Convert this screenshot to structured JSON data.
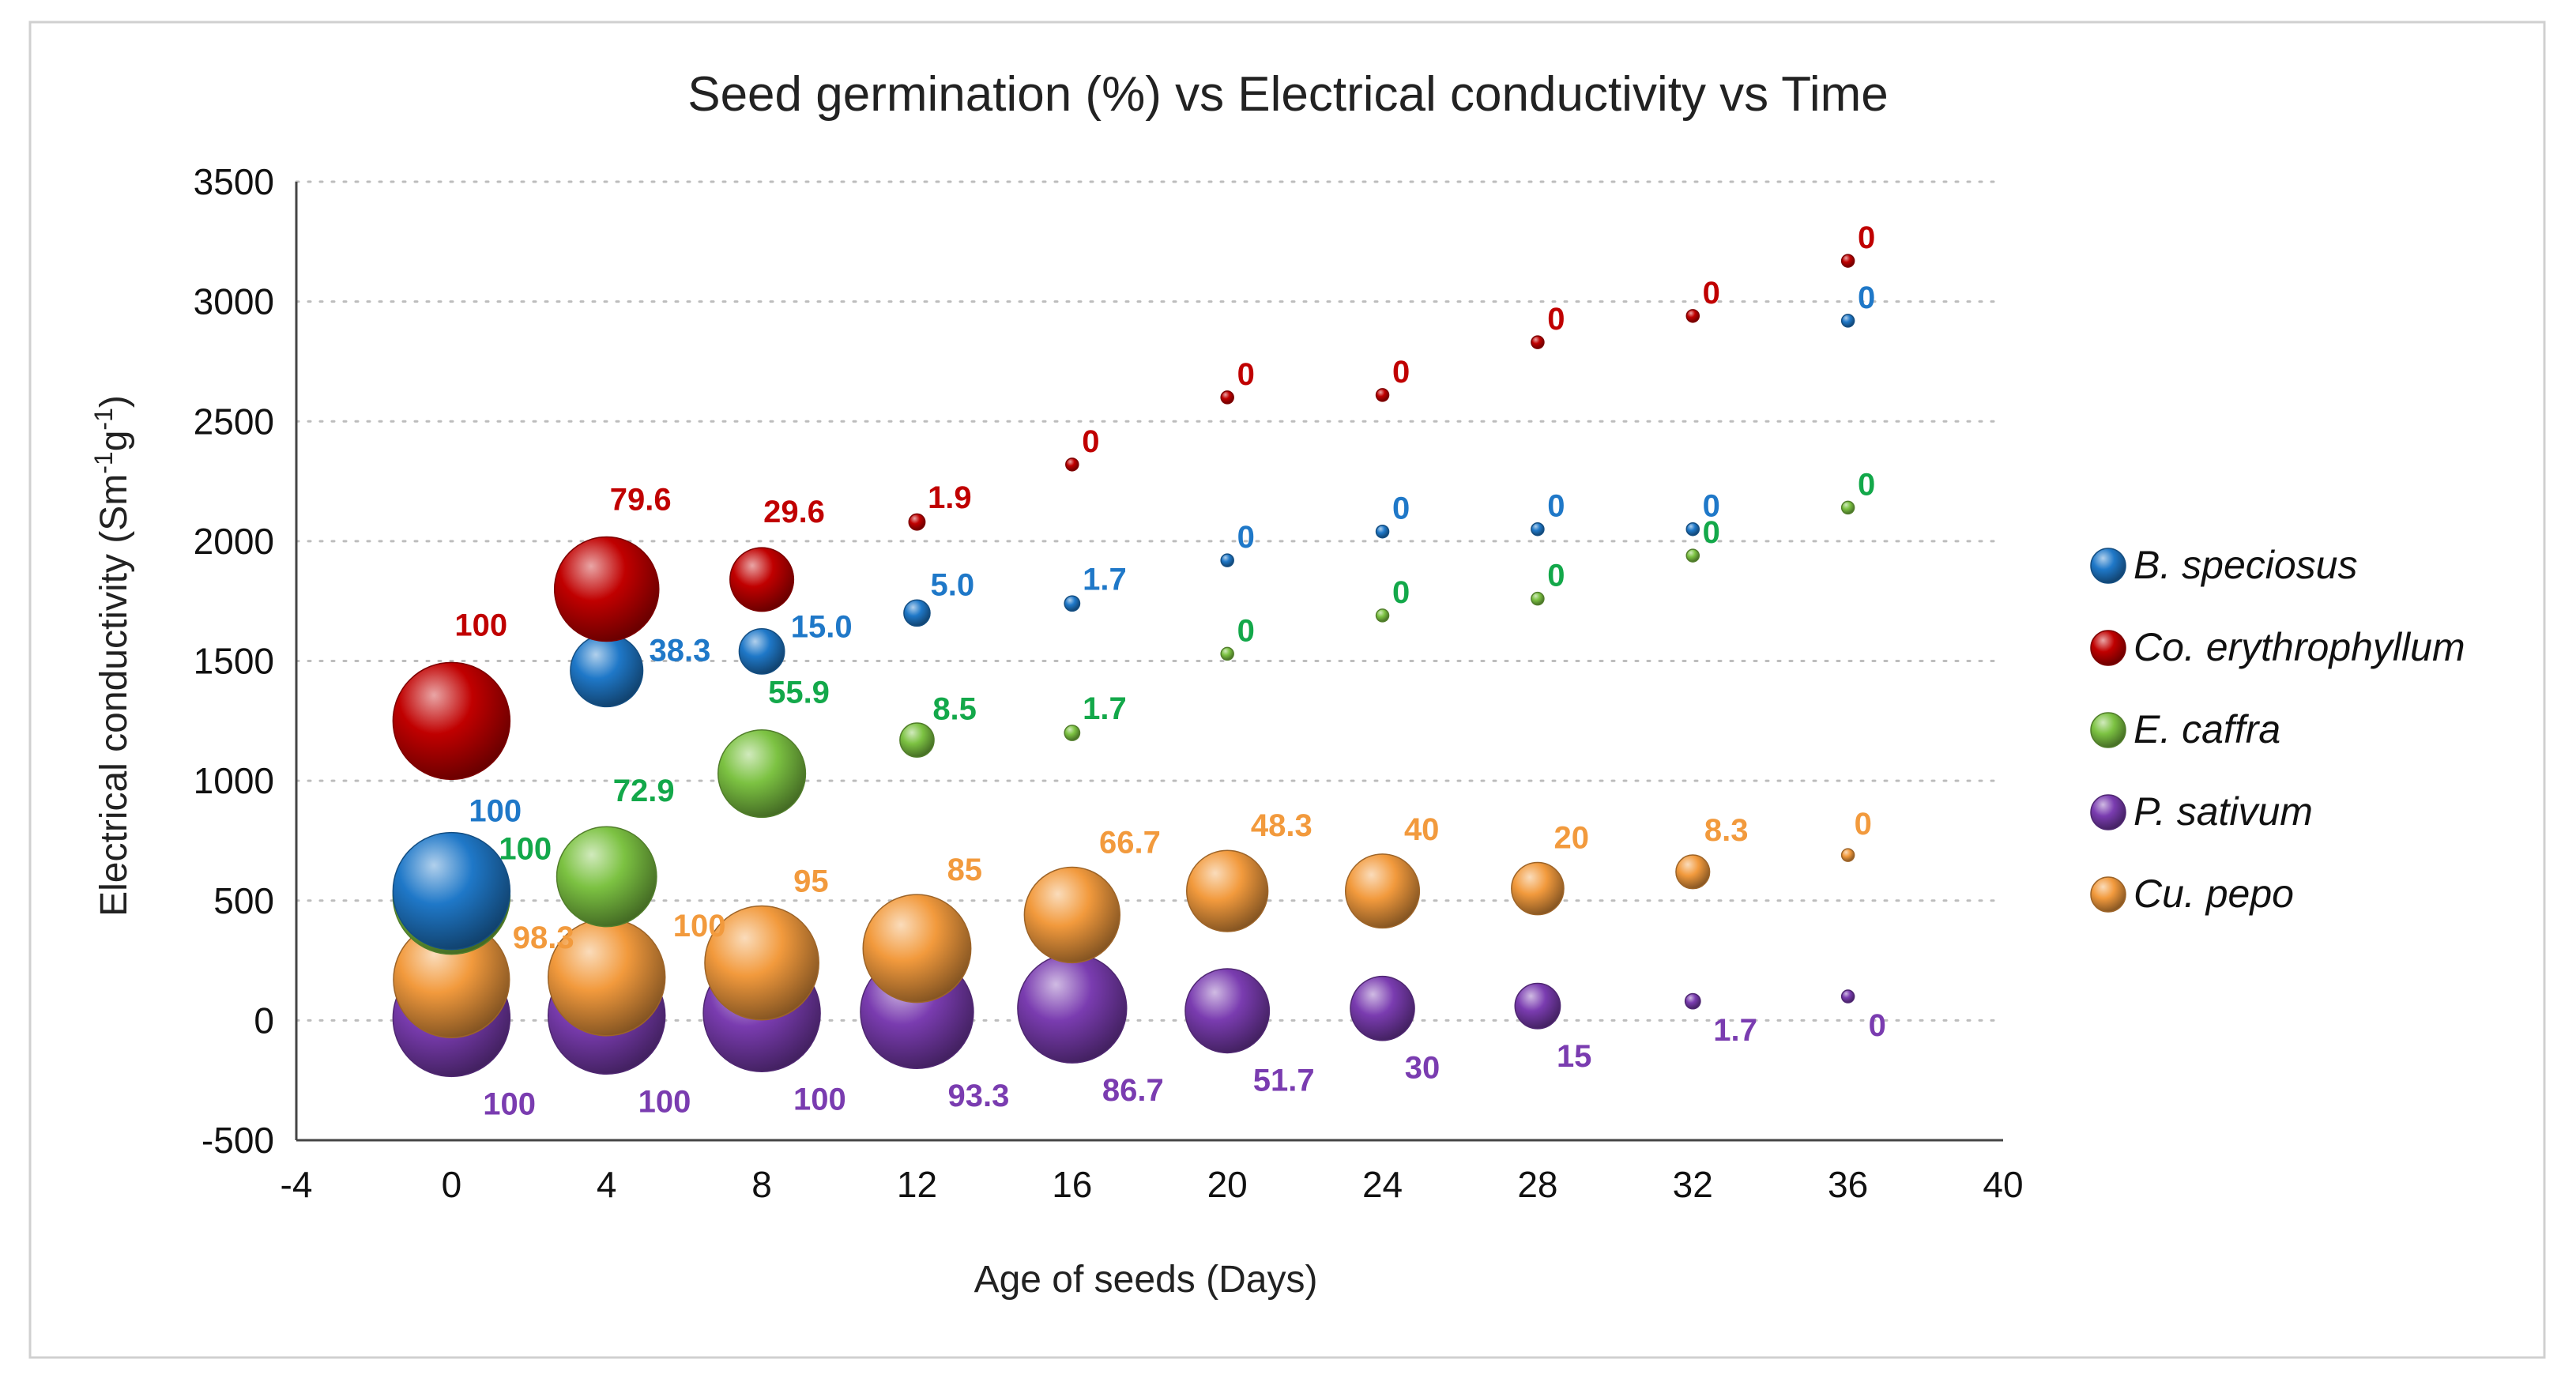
{
  "chart_data": {
    "type": "bubble",
    "title": "Seed germination (%) vs Electrical conductivity vs Time",
    "xlabel": "Age of seeds (Days)",
    "ylabel_main": "Electrical conductivity (Sm",
    "ylabel_sup1": "-1",
    "ylabel_mid": "g",
    "ylabel_sup2": "-1",
    "ylabel_end": ")",
    "xlim": [
      -4,
      40
    ],
    "ylim": [
      -500,
      3500
    ],
    "xticks": [
      -4,
      0,
      4,
      8,
      12,
      16,
      20,
      24,
      28,
      32,
      36,
      40
    ],
    "yticks": [
      -500,
      0,
      500,
      1000,
      1500,
      2000,
      2500,
      3000,
      3500
    ],
    "bubble_size_meaning": "Seed germination (%)",
    "series": [
      {
        "name": "B. speciosus",
        "color": "#1f78c8",
        "x": [
          0,
          4,
          8,
          12,
          16,
          20,
          24,
          28,
          32,
          36
        ],
        "y": [
          540,
          1460,
          1540,
          1700,
          1740,
          1920,
          2040,
          2050,
          2050,
          2920
        ],
        "germination": [
          100,
          38.3,
          15.0,
          5.0,
          1.7,
          0,
          0,
          0,
          0,
          0
        ],
        "labels": [
          "100",
          "38.3",
          "15.0",
          "5.0",
          "1.7",
          "0",
          "0",
          "0",
          "0",
          "0"
        ]
      },
      {
        "name": "Co. erythrophyllum",
        "color": "#c00000",
        "x": [
          0,
          4,
          8,
          12,
          16,
          20,
          24,
          28,
          32,
          36
        ],
        "y": [
          1250,
          1800,
          1840,
          2080,
          2320,
          2600,
          2610,
          2830,
          2940,
          3170
        ],
        "germination": [
          100,
          79.6,
          29.6,
          1.9,
          0,
          0,
          0,
          0,
          0,
          0
        ],
        "labels": [
          "100",
          "79.6",
          "29.6",
          "1.9",
          "0",
          "0",
          "0",
          "0",
          "0",
          "0"
        ]
      },
      {
        "name": "E. caffra",
        "color": "#7cc242",
        "label_color": "#13a84a",
        "x": [
          0,
          4,
          8,
          12,
          16,
          20,
          24,
          28,
          32,
          36
        ],
        "y": [
          520,
          600,
          1030,
          1170,
          1200,
          1530,
          1690,
          1760,
          1940,
          2140
        ],
        "germination": [
          100,
          72.9,
          55.9,
          8.5,
          1.7,
          0,
          0,
          0,
          0,
          0
        ],
        "labels": [
          "100",
          "72.9",
          "55.9",
          "8.5",
          "1.7",
          "0",
          "0",
          "0",
          "0",
          "0"
        ]
      },
      {
        "name": "P. sativum",
        "color": "#7a3cb0",
        "x": [
          0,
          4,
          8,
          12,
          16,
          20,
          24,
          28,
          32,
          36
        ],
        "y": [
          10,
          20,
          30,
          35,
          50,
          40,
          50,
          60,
          80,
          100
        ],
        "germination": [
          100,
          100,
          100,
          93.3,
          86.7,
          51.7,
          30,
          15,
          1.7,
          0
        ],
        "labels": [
          "100",
          "100",
          "100",
          "93.3",
          "86.7",
          "51.7",
          "30",
          "15",
          "1.7",
          "0"
        ]
      },
      {
        "name": "Cu. pepo",
        "color": "#f29a3d",
        "x": [
          0,
          4,
          8,
          12,
          16,
          20,
          24,
          28,
          32,
          36
        ],
        "y": [
          170,
          180,
          240,
          300,
          440,
          540,
          540,
          550,
          620,
          690
        ],
        "germination": [
          98.3,
          100,
          95,
          85,
          66.7,
          48.3,
          40,
          20,
          8.3,
          0
        ],
        "labels": [
          "98.3",
          "100",
          "95",
          "85",
          "66.7",
          "48.3",
          "40",
          "20",
          "8.3",
          "0"
        ]
      }
    ],
    "legend_position": "right"
  }
}
